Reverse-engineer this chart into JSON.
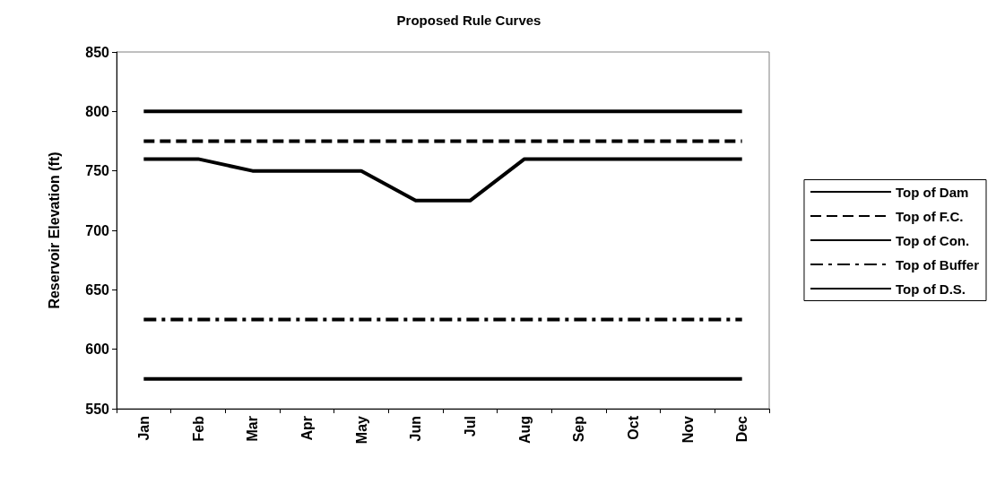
{
  "chart_data": {
    "type": "line",
    "title": "Proposed Rule Curves",
    "ylabel": "Reservoir Elevation (ft)",
    "categories": [
      "Jan",
      "Feb",
      "Mar",
      "Apr",
      "May",
      "Jun",
      "Jul",
      "Aug",
      "Sep",
      "Oct",
      "Nov",
      "Dec"
    ],
    "series": [
      {
        "name": "Top of Dam",
        "color": "#000000",
        "line_style": "solid",
        "values": [
          800,
          800,
          800,
          800,
          800,
          800,
          800,
          800,
          800,
          800,
          800,
          800
        ]
      },
      {
        "name": "Top of F.C.",
        "color": "#000000",
        "line_style": "dashed",
        "values": [
          775,
          775,
          775,
          775,
          775,
          775,
          775,
          775,
          775,
          775,
          775,
          775
        ]
      },
      {
        "name": "Top of Con.",
        "color": "#000000",
        "line_style": "solid",
        "values": [
          760,
          760,
          750,
          750,
          750,
          725,
          725,
          760,
          760,
          760,
          760,
          760
        ]
      },
      {
        "name": "Top of Buffer",
        "color": "#000000",
        "line_style": "dashdot",
        "values": [
          625,
          625,
          625,
          625,
          625,
          625,
          625,
          625,
          625,
          625,
          625,
          625
        ]
      },
      {
        "name": "Top of D.S.",
        "color": "#000000",
        "line_style": "solid",
        "values": [
          575,
          575,
          575,
          575,
          575,
          575,
          575,
          575,
          575,
          575,
          575,
          575
        ]
      }
    ],
    "ylim": [
      550,
      850
    ],
    "yticks": [
      550,
      600,
      650,
      700,
      750,
      800,
      850
    ],
    "grid": false,
    "legend": "right",
    "marker": "none"
  }
}
